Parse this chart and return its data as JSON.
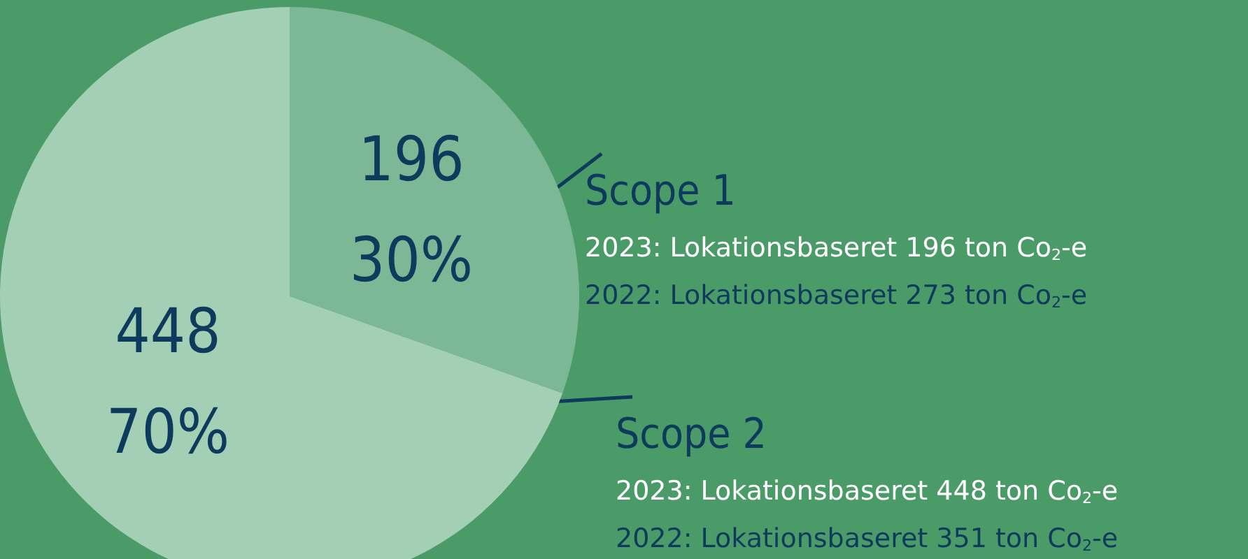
{
  "chart_data": {
    "type": "pie",
    "categories": [
      "Scope 1",
      "Scope 2"
    ],
    "values": [
      196,
      448
    ],
    "colors": [
      "#7db896",
      "#a3cfb5"
    ],
    "value_labels": [
      "196\n30%",
      "448\n70%"
    ],
    "annotations": [
      "2023: Lokationsbaseret 196 ton Co$_{2}$-e",
      "2022: Lokationsbaseret 273 ton Co$_{2}$-e",
      "2023: Lokationsbaseret 448 ton Co$_{2}$-e",
      "2022: Lokationsbaseret 351 ton Co$_{2}$-e"
    ],
    "legend": false
  }
}
